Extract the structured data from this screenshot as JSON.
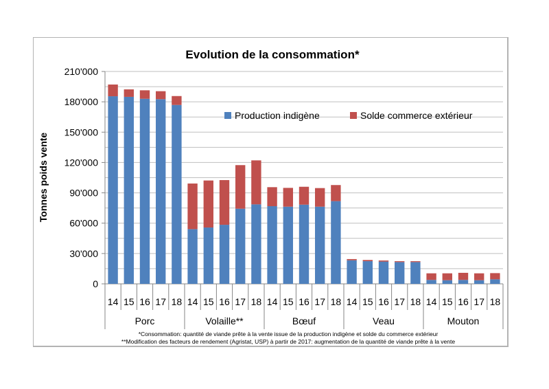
{
  "chart_data": {
    "type": "bar",
    "stacked": true,
    "title": "Evolution de la consommation*",
    "xlabel": "",
    "ylabel": "Tonnes poids vente",
    "ylim": [
      0,
      210000
    ],
    "ytick_step": 30000,
    "minor_grid_step": 15000,
    "ytick_labels": [
      "0",
      "30'000",
      "60'000",
      "90'000",
      "120'000",
      "150'000",
      "180'000",
      "210'000"
    ],
    "grid": true,
    "legend_position": "top-right",
    "groups": [
      {
        "name": "Porc",
        "years": [
          "14",
          "15",
          "16",
          "17",
          "18"
        ]
      },
      {
        "name": "Volaille**",
        "years": [
          "14",
          "15",
          "16",
          "17",
          "18"
        ]
      },
      {
        "name": "Bœuf",
        "years": [
          "14",
          "15",
          "16",
          "17",
          "18"
        ]
      },
      {
        "name": "Veau",
        "years": [
          "14",
          "15",
          "16",
          "17",
          "18"
        ]
      },
      {
        "name": "Mouton",
        "years": [
          "14",
          "15",
          "16",
          "17",
          "18"
        ]
      }
    ],
    "series": [
      {
        "name": "Production indigène",
        "color": "#4f81bd",
        "values": [
          185500,
          184900,
          183000,
          182600,
          176900,
          54100,
          55700,
          58400,
          74300,
          78600,
          76800,
          76300,
          78300,
          76300,
          81800,
          23300,
          22400,
          22000,
          21500,
          21500,
          3900,
          3600,
          3900,
          3600,
          4500
        ]
      },
      {
        "name": "Solde commerce extérieur",
        "color": "#c0504d",
        "values": [
          11600,
          7400,
          8400,
          7900,
          8800,
          45100,
          46500,
          44200,
          43100,
          43500,
          18800,
          18600,
          17700,
          18400,
          15900,
          1200,
          1200,
          1100,
          900,
          900,
          6500,
          6800,
          7000,
          6800,
          6100
        ]
      }
    ],
    "footnotes": [
      "*Consommation: quantité de viande prête à la vente issue de la production indigène et solde du commerce extérieur",
      "**Modification des facteurs de rendement (Agristat, USP) à partir de 2017: augmentation de la quantité de viande prête à la vente"
    ]
  }
}
